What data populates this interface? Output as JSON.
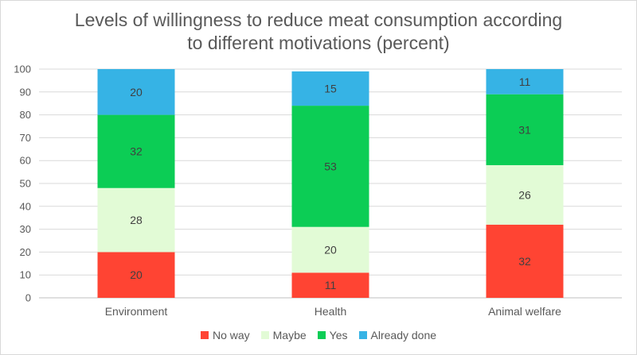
{
  "chart_data": {
    "type": "bar",
    "stacked": true,
    "title_lines": [
      "Levels of willingness to reduce meat consumption according",
      "to different motivations (percent)"
    ],
    "categories": [
      "Environment",
      "Health",
      "Animal welfare"
    ],
    "series": [
      {
        "name": "No way",
        "color": "#ff4433",
        "values": [
          20,
          11,
          32
        ]
      },
      {
        "name": "Maybe",
        "color": "#e2fbd6",
        "values": [
          28,
          20,
          26
        ]
      },
      {
        "name": "Yes",
        "color": "#0ccd55",
        "values": [
          32,
          53,
          31
        ]
      },
      {
        "name": "Already done",
        "color": "#36b3e5",
        "values": [
          20,
          15,
          11
        ]
      }
    ],
    "y_ticks": [
      "0",
      "10",
      "20",
      "30",
      "40",
      "50",
      "60",
      "70",
      "80",
      "90",
      "100"
    ],
    "ylim": [
      0,
      100
    ],
    "grid": true,
    "legend_position": "bottom"
  }
}
